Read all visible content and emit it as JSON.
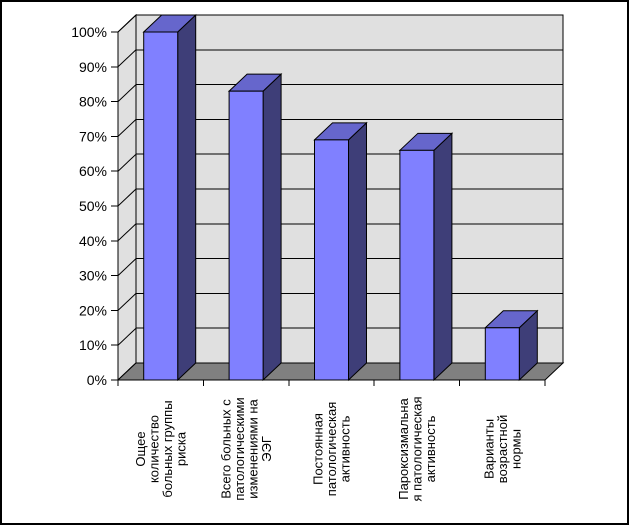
{
  "window": {
    "background": "#FFFFFF",
    "border_color": "#000000"
  },
  "chart_data": {
    "type": "bar",
    "variant": "3d-column",
    "title": "",
    "xlabel": "",
    "ylabel": "",
    "categories": [
      "Ощее количество больных группы риска",
      "Всего больных с патологическими изменениями на ЭЭГ",
      "Постоянная патологическая активность",
      "Пароксизмальна я патологическая активность",
      "Варианты возрастной нормы"
    ],
    "category_lines": [
      [
        "Ощее",
        "количество",
        "больных группы",
        "риска"
      ],
      [
        "Всего больных с",
        "патологическими",
        "изменениями на",
        "ЭЭГ"
      ],
      [
        "Постоянная",
        "патологическая",
        "активность"
      ],
      [
        "Пароксизмальна",
        "я патологическая",
        "активность"
      ],
      [
        "Варианты",
        "возрастной",
        "нормы"
      ]
    ],
    "values": [
      100,
      83,
      69,
      66,
      15
    ],
    "value_suffix": "%",
    "ylim": [
      0,
      100
    ],
    "ytick_step": 10,
    "ytick_labels": [
      "0%",
      "10%",
      "20%",
      "30%",
      "40%",
      "50%",
      "60%",
      "70%",
      "80%",
      "90%",
      "100%"
    ],
    "grid": true,
    "legend": false,
    "colors": {
      "bar_front": "#8080FF",
      "bar_top": "#6666CC",
      "bar_side": "#3E3E78",
      "wall": "#E0E0E0",
      "floor": "#808080",
      "axis": "#000000",
      "text": "#000000",
      "background": "#FFFFFF",
      "border": "#000000"
    }
  }
}
